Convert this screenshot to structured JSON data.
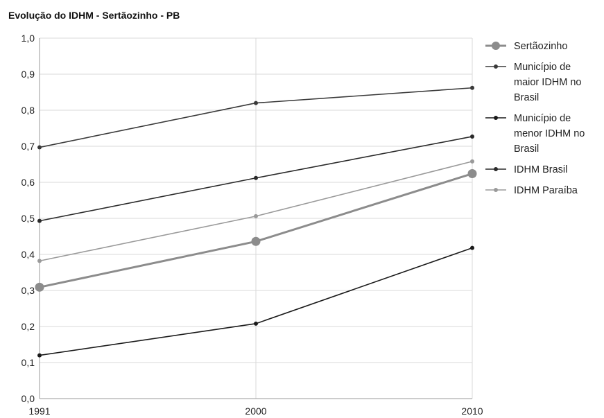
{
  "chart_data": {
    "type": "line",
    "title": "Evolução do IDHM - Sertãozinho - PB",
    "xlabel": "",
    "ylabel": "",
    "x": [
      "1991",
      "2000",
      "2010"
    ],
    "ylim": [
      0,
      1
    ],
    "yticks": [
      "0,0",
      "0,1",
      "0,2",
      "0,3",
      "0,4",
      "0,5",
      "0,6",
      "0,7",
      "0,8",
      "0,9",
      "1,0"
    ],
    "grid": true,
    "legend_position": "right",
    "series": [
      {
        "name": "Sertãozinho",
        "values": [
          0.309,
          0.436,
          0.624
        ],
        "color": "#8c8c8c"
      },
      {
        "name": "Município de maior IDHM no Brasil",
        "values": [
          0.697,
          0.82,
          0.862
        ],
        "color": "#3a3a3a"
      },
      {
        "name": "Município de menor IDHM no Brasil",
        "values": [
          0.12,
          0.208,
          0.418
        ],
        "color": "#1a1a1a"
      },
      {
        "name": "IDHM Brasil",
        "values": [
          0.493,
          0.612,
          0.727
        ],
        "color": "#2a2a2a"
      },
      {
        "name": "IDHM Paraíba",
        "values": [
          0.382,
          0.506,
          0.658
        ],
        "color": "#9a9a9a"
      }
    ],
    "legend_lines": [
      [
        "Sertãozinho"
      ],
      [
        "Município de",
        "maior IDHM no",
        "Brasil"
      ],
      [
        "Município de",
        "menor IDHM no",
        "Brasil"
      ],
      [
        "IDHM Brasil"
      ],
      [
        "IDHM Paraíba"
      ]
    ]
  }
}
